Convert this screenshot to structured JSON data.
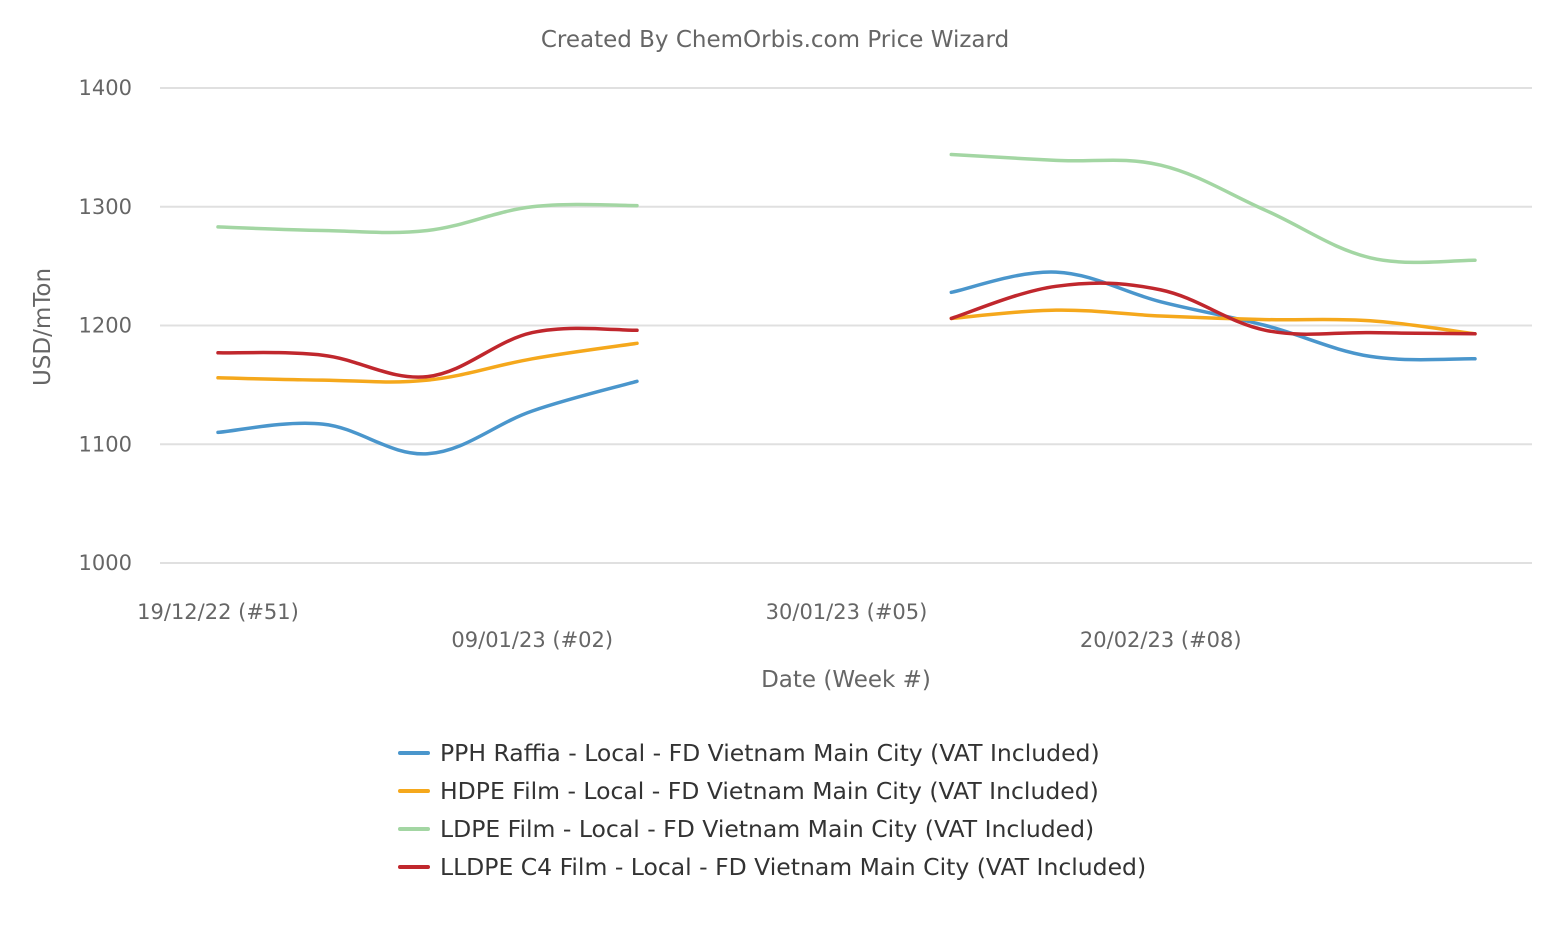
{
  "chart_data": {
    "type": "line",
    "title": "Created By ChemOrbis.com Price Wizard",
    "xlabel": "Date (Week #)",
    "ylabel": "USD/mTon",
    "ylim": [
      1000,
      1400
    ],
    "yticks": [
      1000,
      1100,
      1200,
      1300,
      1400
    ],
    "grid": true,
    "legend_position": "bottom",
    "x_start": "19/12/22",
    "x_end": "13/03/23",
    "x_tick_labels": [
      {
        "date": "19/12/22",
        "label": "19/12/22 (#51)"
      },
      {
        "date": "09/01/23",
        "label": "09/01/23 (#02)"
      },
      {
        "date": "30/01/23",
        "label": "30/01/23 (#05)"
      },
      {
        "date": "20/02/23",
        "label": "20/02/23 (#08)"
      }
    ],
    "dates": [
      "19/12/22",
      "26/12/22",
      "02/01/23",
      "09/01/23",
      "16/01/23",
      "23/01/23",
      "30/01/23",
      "06/02/23",
      "13/02/23",
      "20/02/23",
      "27/02/23",
      "06/03/23",
      "13/03/23"
    ],
    "series": [
      {
        "name": "PPH Raffia - Local - FD Vietnam Main City (VAT Included)",
        "color": "#4a96cc",
        "values": [
          1110,
          1117,
          1092,
          1128,
          1153,
          null,
          null,
          1228,
          1245,
          1220,
          1200,
          1174,
          1172
        ]
      },
      {
        "name": "HDPE Film - Local - FD Vietnam Main City (VAT Included)",
        "color": "#f5a81c",
        "values": [
          1156,
          1154,
          1154,
          1172,
          1185,
          null,
          null,
          1206,
          1213,
          1208,
          1205,
          1204,
          1193
        ]
      },
      {
        "name": "LDPE Film - Local - FD Vietnam Main City (VAT Included)",
        "color": "#a3d6a3",
        "values": [
          1283,
          1280,
          1280,
          1300,
          1301,
          null,
          null,
          1344,
          1339,
          1335,
          1297,
          1257,
          1255
        ]
      },
      {
        "name": "LLDPE C4 Film - Local - FD Vietnam Main City (VAT Included)",
        "color": "#c0272d",
        "values": [
          1177,
          1175,
          1157,
          1194,
          1196,
          null,
          null,
          1206,
          1233,
          1230,
          1196,
          1194,
          1193
        ]
      }
    ]
  }
}
